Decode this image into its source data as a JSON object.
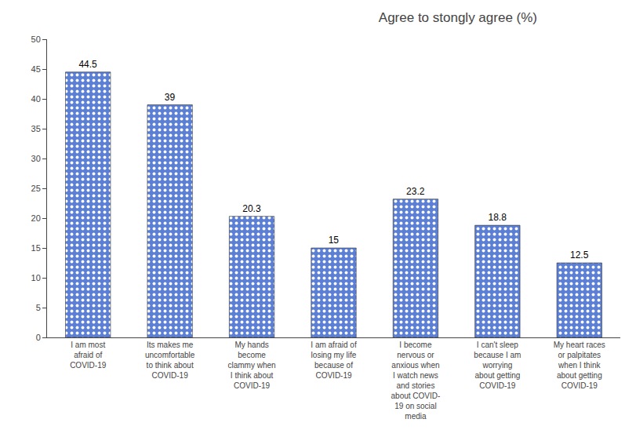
{
  "chart_data": {
    "type": "bar",
    "title": "Agree to stongly agree (%)",
    "categories": [
      "I am most\nafraid of\nCOVID-19",
      "Its makes me\nuncomfortable\nto think about\nCOVID-19",
      "My hands\nbecome\nclammy when\nI think about\nCOVID-19",
      "I am afraid of\nlosing my life\nbecause of\nCOVID-19",
      "I become\nnervous or\nanxious when\nI watch news\nand stories\nabout COVID-\n19 on social\nmedia",
      "I can't sleep\nbecause I am\nworrying\nabout getting\nCOVID-19",
      "My heart races\nor palpitates\nwhen I think\nabout getting\nCOVID-19"
    ],
    "values": [
      44.5,
      39,
      20.3,
      15,
      23.2,
      18.8,
      12.5
    ],
    "color": "#5B7FD4",
    "ylim": [
      0,
      50
    ],
    "yticks": [
      0,
      5,
      10,
      15,
      20,
      25,
      30,
      35,
      40,
      45,
      50
    ],
    "grid": false,
    "data_labels": true
  }
}
